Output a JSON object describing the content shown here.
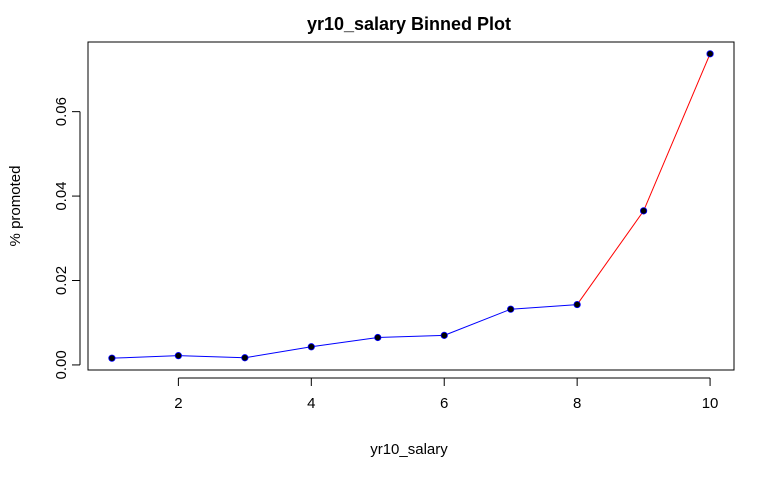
{
  "chart_data": {
    "type": "line",
    "title": "yr10_salary Binned Plot",
    "xlabel": "yr10_salary",
    "ylabel": "% promoted",
    "x": [
      1,
      2,
      3,
      4,
      5,
      6,
      7,
      8,
      9,
      10
    ],
    "y": [
      0.0016,
      0.0022,
      0.0017,
      0.0043,
      0.0065,
      0.007,
      0.0132,
      0.0143,
      0.0365,
      0.0737
    ],
    "xlim": [
      0.64,
      10.36
    ],
    "ylim": [
      -0.0012,
      0.0765
    ],
    "x_ticks": [
      "2",
      "4",
      "6",
      "8",
      "10"
    ],
    "y_ticks": [
      "0.00",
      "0.02",
      "0.04",
      "0.06"
    ],
    "grid": false,
    "segment_colors": {
      "low": "#0000ff",
      "high": "#ff0000",
      "split_x": 8
    },
    "point_color": "#000000",
    "point_outline": "#0000ff"
  }
}
